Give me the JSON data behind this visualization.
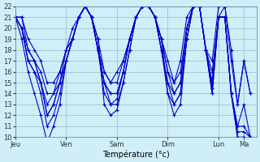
{
  "title": "Température (°c)",
  "bg_color": "#d0eef8",
  "line_color": "#0000cc",
  "grid_color": "#a0b8c8",
  "y_min": 10,
  "y_max": 22,
  "x_ticks": [
    0,
    48,
    96,
    144,
    192,
    216
  ],
  "x_tick_labels": [
    "Jeu",
    "Ven",
    "Sam",
    "Dim",
    "Lun",
    "Ma"
  ],
  "curves": [
    {
      "x": [
        0,
        6,
        12,
        18,
        24,
        30,
        36,
        42,
        48,
        54,
        60,
        66,
        72,
        78,
        84,
        90,
        96,
        102,
        108,
        114,
        120,
        126,
        132,
        138,
        144,
        150,
        156,
        162,
        168,
        174,
        180,
        186,
        192,
        198,
        204,
        210,
        216,
        222
      ],
      "y": [
        21,
        19,
        16,
        14,
        12,
        9.5,
        11,
        13,
        17,
        19,
        21,
        22,
        21,
        19,
        13,
        12,
        12.5,
        15,
        18,
        21,
        22,
        22,
        21,
        19,
        14,
        12,
        13,
        19,
        22,
        22,
        18,
        14,
        21,
        21,
        14,
        10,
        10,
        9.8
      ]
    },
    {
      "x": [
        0,
        6,
        12,
        18,
        24,
        30,
        36,
        42,
        48,
        54,
        60,
        66,
        72,
        78,
        84,
        90,
        96,
        102,
        108,
        114,
        120,
        126,
        132,
        138,
        144,
        150,
        156,
        162,
        168,
        174,
        180,
        186,
        192,
        198,
        204,
        210,
        216,
        222
      ],
      "y": [
        21,
        20,
        17,
        16,
        14,
        11,
        12,
        14,
        17,
        19,
        21,
        22,
        21,
        18,
        14,
        13,
        13,
        15,
        18,
        21,
        22,
        22,
        21,
        18,
        14,
        13,
        14,
        19,
        22,
        22,
        18,
        14,
        21,
        21,
        14,
        10,
        10,
        9.9
      ]
    },
    {
      "x": [
        0,
        6,
        12,
        18,
        24,
        30,
        36,
        42,
        48,
        54,
        60,
        66,
        72,
        78,
        84,
        90,
        96,
        102,
        108,
        114,
        120,
        126,
        132,
        138,
        144,
        150,
        156,
        162,
        168,
        174,
        180,
        186,
        192,
        198,
        204,
        210,
        216,
        222
      ],
      "y": [
        21,
        20,
        17,
        16,
        15,
        12,
        13,
        15,
        17,
        19,
        21,
        22,
        21,
        18,
        15,
        13,
        13.5,
        16,
        19,
        21,
        22,
        22,
        21,
        18,
        15,
        13,
        14,
        19,
        22,
        22,
        18,
        14.5,
        21,
        21,
        14,
        10.5,
        10.5,
        10
      ]
    },
    {
      "x": [
        0,
        6,
        12,
        18,
        24,
        30,
        36,
        42,
        48,
        54,
        60,
        66,
        72,
        78,
        84,
        90,
        96,
        102,
        108,
        114,
        120,
        126,
        132,
        138,
        144,
        150,
        156,
        162,
        168,
        174,
        180,
        186,
        192,
        198,
        204,
        210,
        216,
        222
      ],
      "y": [
        21,
        20,
        17,
        17,
        15,
        12,
        13,
        15,
        17,
        19,
        21,
        22,
        21,
        18,
        15,
        14,
        14,
        16,
        19,
        21,
        22,
        22,
        21,
        18,
        15,
        14,
        15,
        20,
        22,
        22,
        18,
        15,
        21,
        21,
        14,
        11,
        11,
        10
      ]
    },
    {
      "x": [
        0,
        6,
        12,
        18,
        24,
        30,
        36,
        42,
        48,
        54,
        60,
        66,
        72,
        78,
        84,
        90,
        96,
        102,
        108,
        114,
        120,
        126,
        132,
        138,
        144,
        150,
        156,
        162,
        168,
        174,
        180,
        186,
        192,
        198,
        204,
        210,
        216,
        222
      ],
      "y": [
        21,
        20,
        18,
        17,
        15,
        13,
        14,
        15,
        18,
        19,
        21,
        22,
        21,
        18,
        15,
        14,
        14,
        16,
        19,
        21,
        22,
        22,
        21,
        19,
        16,
        14,
        15,
        20,
        22,
        22,
        18,
        15,
        21,
        21,
        14,
        11,
        13,
        10
      ]
    },
    {
      "x": [
        0,
        6,
        12,
        18,
        24,
        30,
        36,
        42,
        48,
        54,
        60,
        66,
        72,
        78,
        84,
        90,
        96,
        102,
        108,
        114,
        120,
        126,
        132,
        138,
        144,
        150,
        156,
        162,
        168,
        174,
        180,
        186,
        192,
        198,
        204,
        210,
        216,
        222
      ],
      "y": [
        21,
        21,
        18,
        17,
        16,
        14,
        14,
        16,
        18,
        19,
        21,
        22,
        21,
        18,
        16,
        15,
        15,
        17,
        19,
        21,
        22,
        22,
        21,
        19,
        16,
        15,
        16,
        20,
        22,
        22,
        18,
        16,
        21,
        22,
        17,
        13,
        17,
        14
      ]
    },
    {
      "x": [
        0,
        6,
        12,
        18,
        24,
        30,
        36,
        42,
        48,
        54,
        60,
        66,
        72,
        78,
        84,
        90,
        96,
        102,
        108,
        114,
        120,
        126,
        132,
        138,
        144,
        150,
        156,
        162,
        168,
        174,
        180,
        186,
        192,
        198,
        204,
        210,
        216,
        222
      ],
      "y": [
        21,
        21,
        19,
        18,
        17,
        15,
        15,
        16,
        18,
        20,
        21,
        22,
        21,
        19,
        16,
        15,
        16,
        17,
        19,
        21,
        22,
        22,
        21,
        19,
        17,
        15,
        17,
        21,
        22,
        22,
        18,
        17,
        22,
        22,
        18,
        13,
        17,
        14
      ]
    }
  ]
}
